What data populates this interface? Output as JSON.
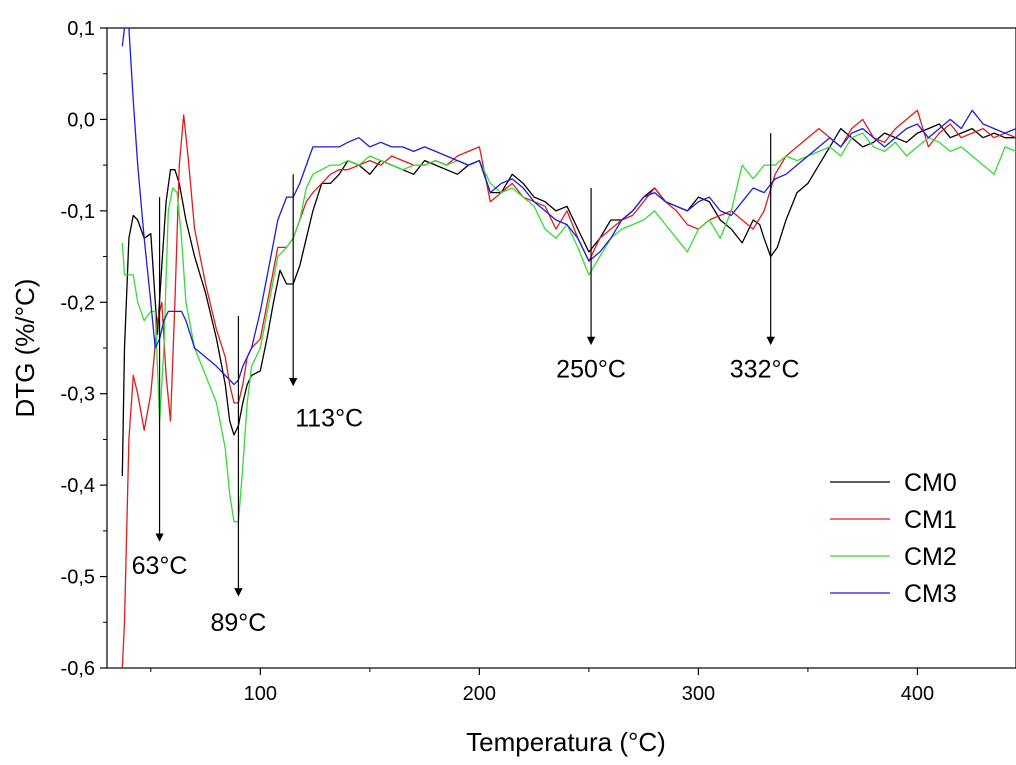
{
  "chart_data": {
    "type": "line",
    "title": "",
    "xlabel": "Temperatura (°C)",
    "ylabel": "DTG (%/°C)",
    "xlim": [
      30,
      445
    ],
    "ylim": [
      -0.6,
      0.1
    ],
    "xticks": [
      100,
      200,
      300,
      400
    ],
    "xtick_labels": [
      "100",
      "200",
      "300",
      "400"
    ],
    "yticks": [
      0.1,
      0.0,
      -0.1,
      -0.2,
      -0.3,
      -0.4,
      -0.5,
      -0.6
    ],
    "ytick_labels": [
      "0,1",
      "0,0",
      "-0,1",
      "-0,2",
      "-0,3",
      "-0,4",
      "-0,5",
      "-0,6"
    ],
    "grid": false,
    "legend_position": "lower-right",
    "series": [
      {
        "name": "CM0",
        "color": "#000000",
        "x": [
          37,
          38,
          40,
          42,
          44,
          47,
          50,
          53,
          55,
          57,
          59,
          61,
          63,
          66,
          70,
          75,
          80,
          84,
          86,
          88,
          90,
          92,
          94,
          96,
          100,
          103,
          106,
          109,
          112,
          115,
          118,
          121,
          124,
          128,
          132,
          136,
          140,
          145,
          150,
          155,
          160,
          165,
          170,
          175,
          180,
          185,
          190,
          195,
          200,
          205,
          210,
          215,
          220,
          225,
          230,
          235,
          240,
          245,
          250,
          255,
          260,
          265,
          270,
          275,
          280,
          285,
          290,
          295,
          300,
          305,
          310,
          315,
          320,
          325,
          328,
          330,
          333,
          336,
          340,
          345,
          350,
          355,
          360,
          365,
          370,
          375,
          380,
          385,
          390,
          395,
          400,
          405,
          410,
          415,
          420,
          425,
          430,
          435,
          440,
          445
        ],
        "y": [
          -0.39,
          -0.25,
          -0.13,
          -0.105,
          -0.11,
          -0.13,
          -0.125,
          -0.235,
          -0.16,
          -0.09,
          -0.055,
          -0.055,
          -0.07,
          -0.11,
          -0.15,
          -0.19,
          -0.24,
          -0.29,
          -0.33,
          -0.345,
          -0.335,
          -0.31,
          -0.29,
          -0.28,
          -0.275,
          -0.24,
          -0.2,
          -0.165,
          -0.18,
          -0.18,
          -0.16,
          -0.13,
          -0.1,
          -0.07,
          -0.07,
          -0.06,
          -0.045,
          -0.05,
          -0.06,
          -0.045,
          -0.05,
          -0.055,
          -0.06,
          -0.045,
          -0.05,
          -0.055,
          -0.06,
          -0.05,
          -0.045,
          -0.08,
          -0.08,
          -0.06,
          -0.07,
          -0.085,
          -0.09,
          -0.1,
          -0.095,
          -0.12,
          -0.145,
          -0.13,
          -0.11,
          -0.11,
          -0.1,
          -0.085,
          -0.075,
          -0.09,
          -0.095,
          -0.1,
          -0.085,
          -0.09,
          -0.11,
          -0.12,
          -0.135,
          -0.11,
          -0.115,
          -0.13,
          -0.15,
          -0.14,
          -0.11,
          -0.08,
          -0.07,
          -0.05,
          -0.03,
          -0.01,
          -0.02,
          -0.03,
          -0.025,
          -0.015,
          -0.02,
          -0.025,
          -0.015,
          -0.01,
          -0.005,
          -0.02,
          -0.015,
          -0.01,
          -0.02,
          -0.015,
          -0.02,
          -0.02
        ]
      },
      {
        "name": "CM1",
        "color": "#e31a1c",
        "x": [
          37,
          38,
          40,
          42,
          44,
          47,
          50,
          53,
          55,
          57,
          59,
          61,
          63,
          65,
          67,
          70,
          75,
          80,
          84,
          86,
          88,
          90,
          92,
          94,
          96,
          100,
          104,
          108,
          112,
          115,
          118,
          121,
          124,
          128,
          132,
          136,
          140,
          145,
          150,
          155,
          160,
          165,
          170,
          175,
          180,
          185,
          190,
          195,
          200,
          205,
          210,
          215,
          220,
          225,
          230,
          235,
          240,
          245,
          250,
          255,
          260,
          265,
          270,
          275,
          280,
          285,
          290,
          295,
          300,
          305,
          310,
          315,
          320,
          325,
          330,
          335,
          340,
          345,
          350,
          355,
          360,
          365,
          370,
          375,
          380,
          385,
          390,
          395,
          400,
          405,
          410,
          415,
          420,
          425,
          430,
          435,
          440,
          445
        ],
        "y": [
          -0.6,
          -0.55,
          -0.35,
          -0.28,
          -0.3,
          -0.34,
          -0.3,
          -0.22,
          -0.2,
          -0.28,
          -0.33,
          -0.2,
          -0.05,
          0.005,
          -0.04,
          -0.12,
          -0.18,
          -0.23,
          -0.26,
          -0.29,
          -0.31,
          -0.31,
          -0.29,
          -0.26,
          -0.25,
          -0.24,
          -0.19,
          -0.14,
          -0.14,
          -0.13,
          -0.11,
          -0.09,
          -0.08,
          -0.07,
          -0.06,
          -0.055,
          -0.055,
          -0.05,
          -0.045,
          -0.05,
          -0.04,
          -0.045,
          -0.05,
          -0.05,
          -0.045,
          -0.05,
          -0.04,
          -0.035,
          -0.03,
          -0.09,
          -0.08,
          -0.07,
          -0.085,
          -0.09,
          -0.095,
          -0.12,
          -0.1,
          -0.13,
          -0.155,
          -0.13,
          -0.12,
          -0.11,
          -0.105,
          -0.09,
          -0.075,
          -0.09,
          -0.1,
          -0.115,
          -0.12,
          -0.11,
          -0.105,
          -0.1,
          -0.11,
          -0.12,
          -0.1,
          -0.06,
          -0.04,
          -0.03,
          -0.02,
          -0.01,
          -0.02,
          -0.03,
          -0.01,
          0.0,
          -0.02,
          -0.025,
          -0.01,
          0.0,
          0.01,
          -0.03,
          -0.015,
          -0.005,
          -0.02,
          -0.015,
          -0.01,
          -0.02,
          -0.015,
          -0.02
        ]
      },
      {
        "name": "CM2",
        "color": "#33dd33",
        "x": [
          37,
          38,
          40,
          42,
          44,
          47,
          50,
          52,
          54,
          56,
          58,
          60,
          62,
          64,
          66,
          70,
          75,
          80,
          84,
          86,
          88,
          90,
          92,
          94,
          96,
          100,
          104,
          108,
          112,
          115,
          118,
          121,
          124,
          128,
          132,
          136,
          140,
          145,
          150,
          155,
          160,
          165,
          170,
          175,
          180,
          185,
          190,
          195,
          200,
          205,
          210,
          215,
          220,
          225,
          230,
          235,
          240,
          245,
          250,
          255,
          260,
          265,
          270,
          275,
          280,
          285,
          290,
          295,
          300,
          305,
          310,
          315,
          320,
          325,
          330,
          335,
          340,
          345,
          350,
          355,
          360,
          365,
          370,
          375,
          380,
          385,
          390,
          395,
          400,
          405,
          410,
          415,
          420,
          425,
          430,
          435,
          440,
          445
        ],
        "y": [
          -0.135,
          -0.17,
          -0.17,
          -0.17,
          -0.2,
          -0.22,
          -0.21,
          -0.21,
          -0.33,
          -0.25,
          -0.1,
          -0.075,
          -0.08,
          -0.13,
          -0.2,
          -0.25,
          -0.28,
          -0.31,
          -0.36,
          -0.41,
          -0.44,
          -0.44,
          -0.38,
          -0.31,
          -0.27,
          -0.25,
          -0.2,
          -0.15,
          -0.14,
          -0.13,
          -0.11,
          -0.075,
          -0.06,
          -0.055,
          -0.05,
          -0.05,
          -0.045,
          -0.05,
          -0.04,
          -0.045,
          -0.05,
          -0.055,
          -0.05,
          -0.05,
          -0.045,
          -0.05,
          -0.045,
          -0.05,
          -0.045,
          -0.07,
          -0.08,
          -0.075,
          -0.085,
          -0.095,
          -0.12,
          -0.13,
          -0.115,
          -0.14,
          -0.17,
          -0.15,
          -0.13,
          -0.12,
          -0.115,
          -0.11,
          -0.1,
          -0.115,
          -0.13,
          -0.145,
          -0.12,
          -0.11,
          -0.13,
          -0.1,
          -0.05,
          -0.065,
          -0.05,
          -0.05,
          -0.04,
          -0.045,
          -0.04,
          -0.035,
          -0.03,
          -0.04,
          -0.02,
          -0.015,
          -0.03,
          -0.035,
          -0.025,
          -0.04,
          -0.03,
          -0.02,
          -0.025,
          -0.035,
          -0.03,
          -0.04,
          -0.05,
          -0.06,
          -0.03,
          -0.035
        ]
      },
      {
        "name": "CM3",
        "color": "#1c1ce3",
        "x": [
          37,
          38,
          40,
          42,
          44,
          47,
          50,
          52,
          54,
          56,
          58,
          60,
          62,
          64,
          66,
          70,
          75,
          80,
          84,
          86,
          88,
          90,
          92,
          94,
          96,
          100,
          104,
          108,
          112,
          115,
          118,
          121,
          124,
          128,
          132,
          136,
          140,
          145,
          150,
          155,
          160,
          165,
          170,
          175,
          180,
          185,
          190,
          195,
          200,
          205,
          210,
          215,
          220,
          225,
          230,
          235,
          240,
          245,
          250,
          255,
          260,
          265,
          270,
          275,
          280,
          285,
          290,
          295,
          300,
          305,
          310,
          315,
          320,
          325,
          330,
          335,
          340,
          345,
          350,
          355,
          360,
          365,
          370,
          375,
          380,
          385,
          390,
          395,
          400,
          405,
          410,
          415,
          420,
          425,
          430,
          435,
          440,
          445
        ],
        "y": [
          0.08,
          0.1,
          0.1,
          0.02,
          -0.05,
          -0.13,
          -0.2,
          -0.25,
          -0.24,
          -0.22,
          -0.21,
          -0.21,
          -0.21,
          -0.21,
          -0.22,
          -0.25,
          -0.26,
          -0.27,
          -0.28,
          -0.285,
          -0.29,
          -0.285,
          -0.27,
          -0.26,
          -0.25,
          -0.21,
          -0.16,
          -0.11,
          -0.085,
          -0.085,
          -0.07,
          -0.05,
          -0.03,
          -0.03,
          -0.03,
          -0.03,
          -0.025,
          -0.02,
          -0.03,
          -0.025,
          -0.03,
          -0.03,
          -0.035,
          -0.03,
          -0.035,
          -0.04,
          -0.045,
          -0.05,
          -0.045,
          -0.08,
          -0.07,
          -0.065,
          -0.075,
          -0.09,
          -0.1,
          -0.11,
          -0.115,
          -0.13,
          -0.155,
          -0.145,
          -0.13,
          -0.11,
          -0.1,
          -0.085,
          -0.08,
          -0.09,
          -0.095,
          -0.1,
          -0.09,
          -0.085,
          -0.1,
          -0.105,
          -0.09,
          -0.075,
          -0.08,
          -0.065,
          -0.06,
          -0.05,
          -0.04,
          -0.03,
          -0.02,
          -0.03,
          -0.015,
          -0.01,
          -0.02,
          -0.03,
          -0.02,
          -0.01,
          -0.005,
          -0.02,
          -0.01,
          0.0,
          -0.01,
          0.01,
          -0.005,
          -0.01,
          -0.015,
          -0.01
        ]
      }
    ],
    "annotations": [
      {
        "text": "63°C",
        "x_start": 54,
        "y_start": -0.085,
        "x_end": 54,
        "y_end": -0.46
      },
      {
        "text": "89°C",
        "x_start": 90,
        "y_start": -0.215,
        "x_end": 90,
        "y_end": -0.52
      },
      {
        "text": "113°C",
        "x_start": 115,
        "y_start": -0.06,
        "x_end": 115,
        "y_end": -0.29
      },
      {
        "text": "250°C",
        "x_start": 251,
        "y_start": -0.075,
        "x_end": 251,
        "y_end": -0.245
      },
      {
        "text": "332°C",
        "x_start": 333,
        "y_start": -0.015,
        "x_end": 333,
        "y_end": -0.245
      }
    ]
  }
}
